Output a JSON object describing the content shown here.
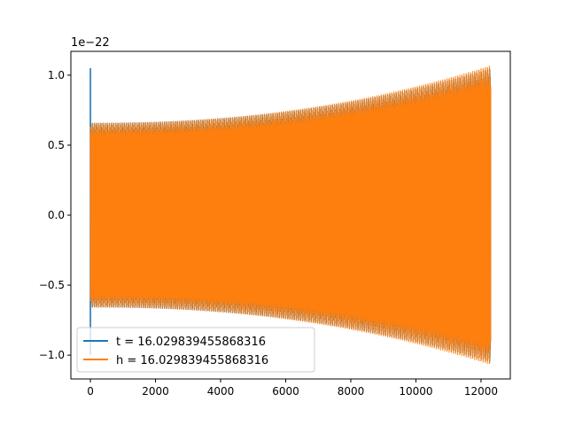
{
  "chart_data": {
    "type": "line",
    "offset_label": "1e−22",
    "xlim": [
      -600,
      12900
    ],
    "ylim": [
      -1.17,
      1.17
    ],
    "x_ticks": [
      0,
      2000,
      4000,
      6000,
      8000,
      10000,
      12000
    ],
    "x_tick_labels": [
      "0",
      "2000",
      "4000",
      "6000",
      "8000",
      "10000",
      "12000"
    ],
    "y_ticks": [
      -1.0,
      -0.5,
      0.0,
      0.5,
      1.0
    ],
    "y_tick_labels": [
      "−1.0",
      "−0.5",
      "0.0",
      "0.5",
      "1.0"
    ],
    "legend_position": "lower-left",
    "series": [
      {
        "name": "t = 16.029839455868316",
        "color": "#1f77b4",
        "x_range": [
          0,
          12300
        ],
        "envelope_start": 0.66,
        "envelope_end": 1.05,
        "initial_spike": [
          1.05,
          -1.0
        ]
      },
      {
        "name": "h = 16.029839455868316",
        "color": "#ff7f0e",
        "x_range": [
          0,
          12300
        ],
        "envelope_start": 0.66,
        "envelope_end": 1.07
      }
    ]
  }
}
